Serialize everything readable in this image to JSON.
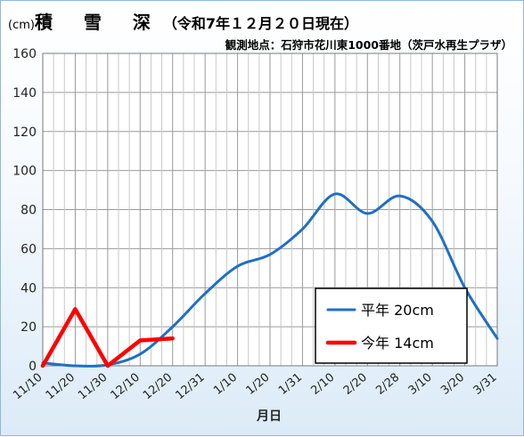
{
  "header": {
    "unit": "(cm)",
    "title": "積 雪 深",
    "date": "（令和7年１２月２０日現在）",
    "subtitle": "観測地点：石狩市花川東1000番地（茨戸水再生プラザ）"
  },
  "chart_data": {
    "type": "line",
    "xlabel": "月日",
    "ylabel": "",
    "ylim": [
      0,
      160
    ],
    "yticks": [
      0,
      20,
      40,
      60,
      80,
      100,
      120,
      140,
      160
    ],
    "categories": [
      "11/10",
      "11/20",
      "11/30",
      "12/10",
      "12/20",
      "12/31",
      "1/10",
      "1/20",
      "1/31",
      "2/10",
      "2/20",
      "2/28",
      "3/10",
      "3/20",
      "3/31"
    ],
    "grid": true,
    "legend_position": "bottom-right",
    "series": [
      {
        "name": "平年 20cm",
        "color": "#1f6fc4",
        "x": [
          0,
          1,
          2,
          3,
          4,
          5,
          6,
          7,
          8,
          9,
          10,
          11,
          12,
          13,
          14
        ],
        "values": [
          1.5,
          0,
          0.5,
          6,
          20,
          37,
          51,
          57,
          70,
          88,
          78,
          87,
          74,
          40,
          14
        ]
      },
      {
        "name": "今年 14cm",
        "color": "#ff0000",
        "x": [
          0,
          1,
          2,
          3,
          4
        ],
        "values": [
          0,
          29,
          0,
          13,
          14
        ]
      }
    ]
  }
}
